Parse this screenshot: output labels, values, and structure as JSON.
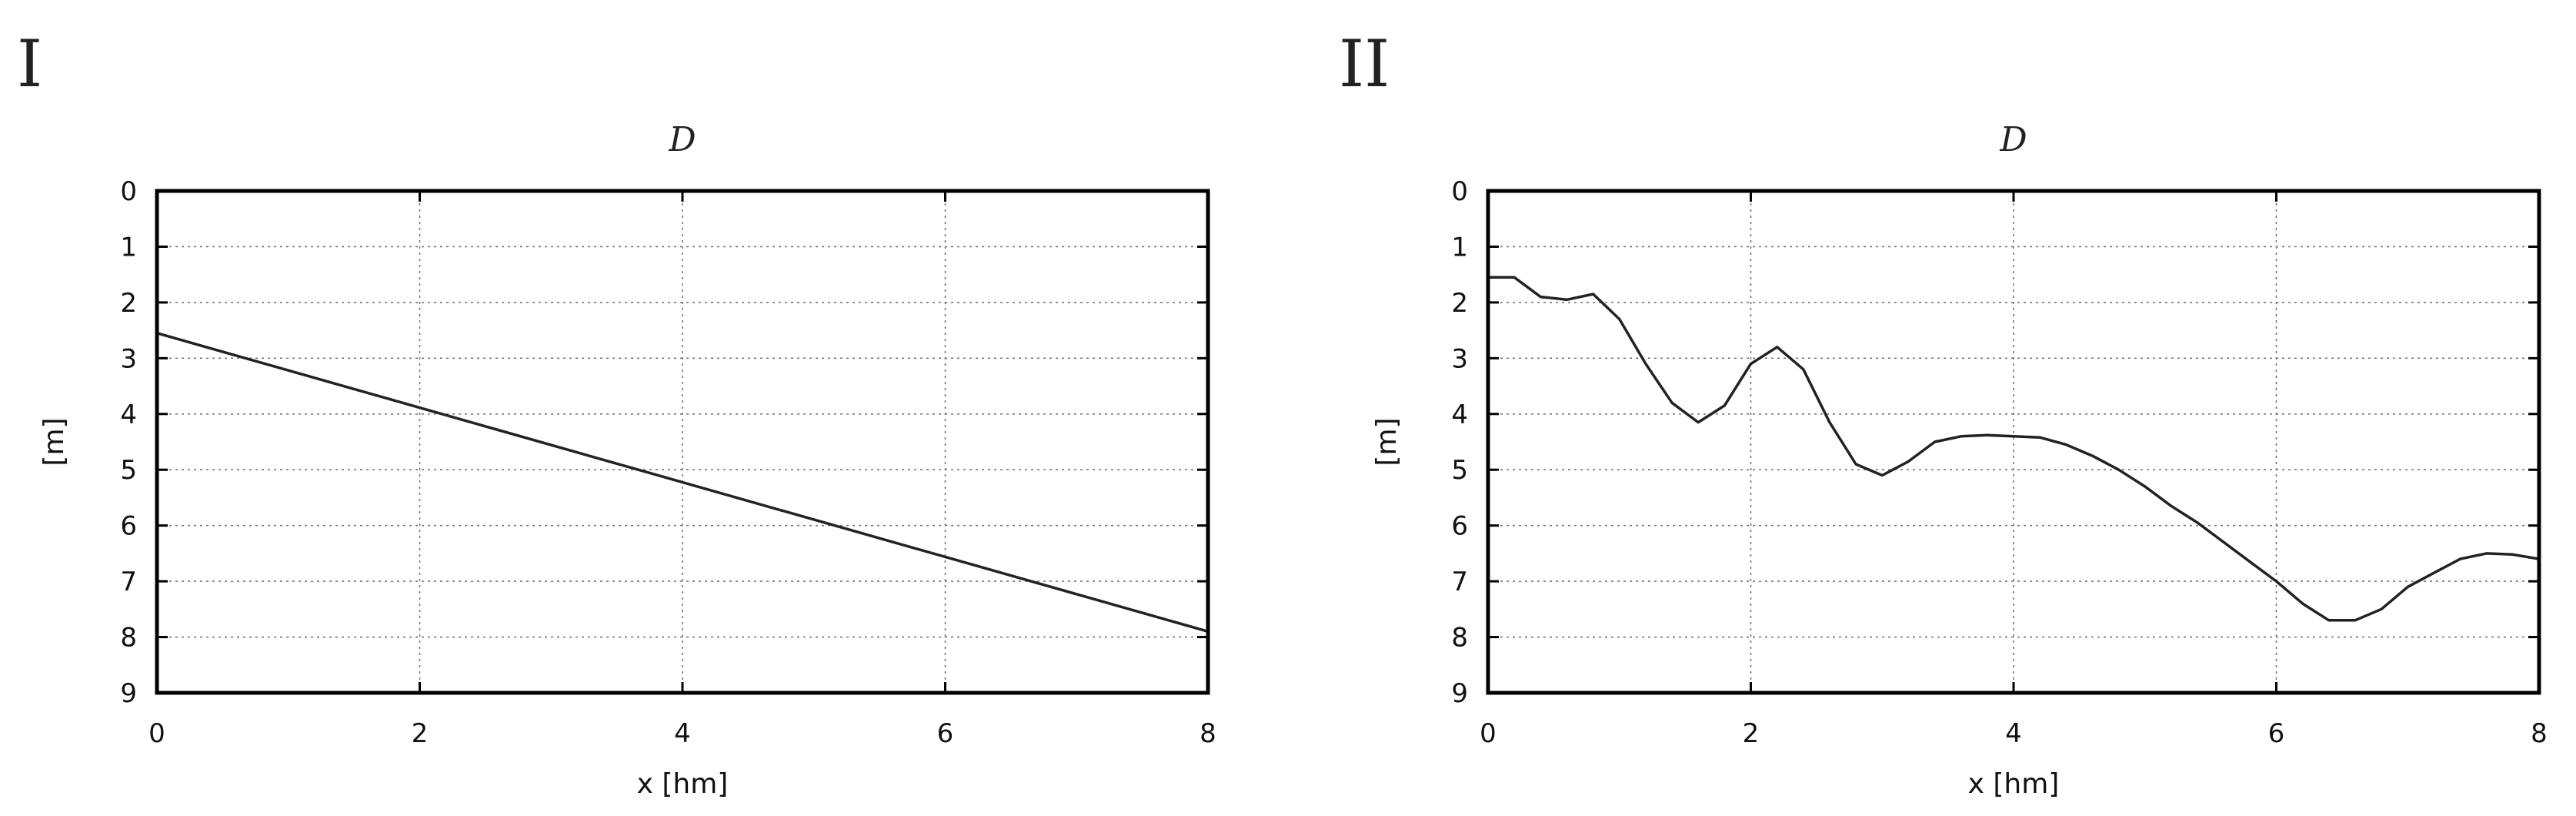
{
  "panels": [
    {
      "label": "I",
      "chart_data": {
        "type": "line",
        "title": "D",
        "xlabel": "x [hm]",
        "ylabel": "[m]",
        "xlim": [
          0,
          8
        ],
        "ylim": [
          0,
          9
        ],
        "y_inverted": true,
        "grid": true,
        "x_ticks": [
          "0",
          "2",
          "4",
          "6",
          "8"
        ],
        "y_ticks": [
          "0",
          "1",
          "2",
          "3",
          "4",
          "5",
          "6",
          "7",
          "8",
          "9"
        ],
        "series": [
          {
            "x": [
              0,
              8
            ],
            "y": [
              2.55,
              7.9
            ]
          }
        ]
      }
    },
    {
      "label": "II",
      "chart_data": {
        "type": "line",
        "title": "D",
        "xlabel": "x [hm]",
        "ylabel": "[m]",
        "xlim": [
          0,
          8
        ],
        "ylim": [
          0,
          9
        ],
        "y_inverted": true,
        "grid": true,
        "x_ticks": [
          "0",
          "2",
          "4",
          "6",
          "8"
        ],
        "y_ticks": [
          "0",
          "1",
          "2",
          "3",
          "4",
          "5",
          "6",
          "7",
          "8",
          "9"
        ],
        "series": [
          {
            "x": [
              0,
              0.2,
              0.4,
              0.6,
              0.8,
              1.0,
              1.2,
              1.4,
              1.6,
              1.8,
              2.0,
              2.2,
              2.4,
              2.6,
              2.8,
              3.0,
              3.2,
              3.4,
              3.6,
              3.8,
              4.0,
              4.2,
              4.4,
              4.6,
              4.8,
              5.0,
              5.2,
              5.4,
              5.6,
              5.8,
              6.0,
              6.2,
              6.4,
              6.6,
              6.8,
              7.0,
              7.2,
              7.4,
              7.6,
              7.8,
              8.0
            ],
            "y": [
              1.55,
              1.55,
              1.9,
              1.95,
              1.85,
              2.3,
              3.1,
              3.8,
              4.15,
              3.85,
              3.1,
              2.8,
              3.2,
              4.15,
              4.9,
              5.1,
              4.85,
              4.5,
              4.4,
              4.38,
              4.4,
              4.42,
              4.55,
              4.75,
              5.0,
              5.3,
              5.65,
              5.95,
              6.3,
              6.65,
              7.0,
              7.4,
              7.7,
              7.7,
              7.5,
              7.1,
              6.85,
              6.6,
              6.5,
              6.52,
              6.6
            ]
          }
        ]
      }
    }
  ]
}
